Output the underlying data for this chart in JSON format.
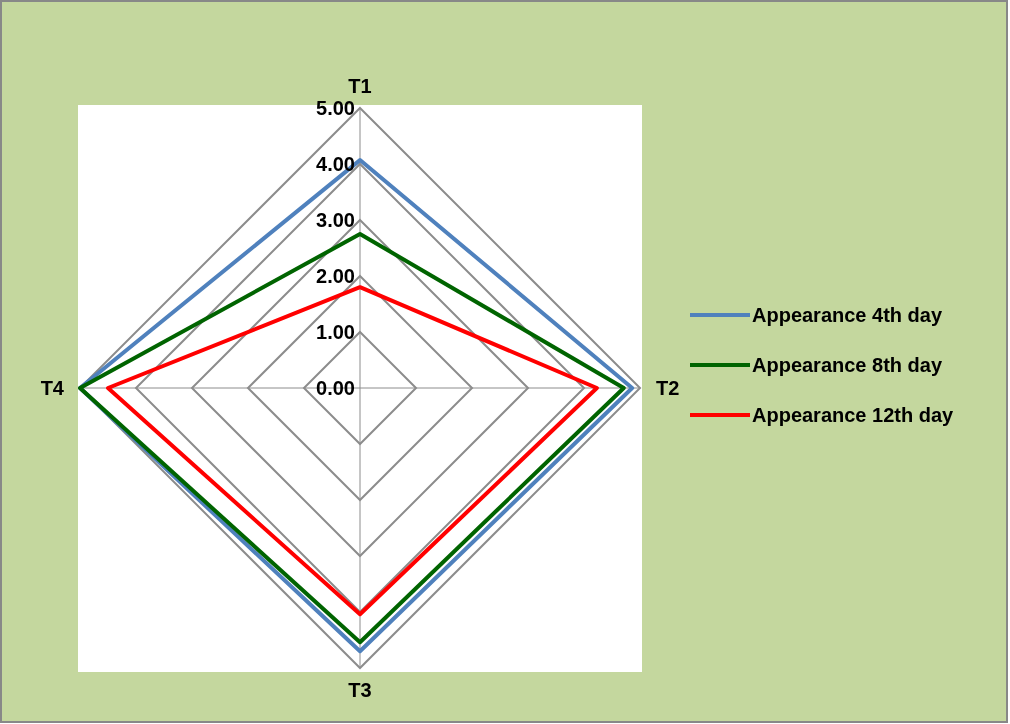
{
  "chart_data": {
    "type": "radar",
    "categories": [
      "T1",
      "T2",
      "T3",
      "T4"
    ],
    "series": [
      {
        "name": "Appearance 4th day",
        "color": "#4f81bd",
        "values": [
          4.07,
          4.86,
          4.7,
          5.0
        ]
      },
      {
        "name": "Appearance 8th day",
        "color": "#006400",
        "values": [
          2.75,
          4.71,
          4.54,
          5.0
        ]
      },
      {
        "name": "Appearance 12th day",
        "color": "#ff0000",
        "values": [
          1.8,
          4.23,
          4.04,
          4.5
        ]
      }
    ],
    "ylim": [
      0,
      5
    ],
    "yticks": [
      {
        "value": 0,
        "label": "0.00"
      },
      {
        "value": 1,
        "label": "1.00"
      },
      {
        "value": 2,
        "label": "2.00"
      },
      {
        "value": 3,
        "label": "3.00"
      },
      {
        "value": 4,
        "label": "4.00"
      },
      {
        "value": 5,
        "label": "5.00"
      }
    ],
    "grid": true,
    "legend": "right",
    "marker": "none"
  }
}
